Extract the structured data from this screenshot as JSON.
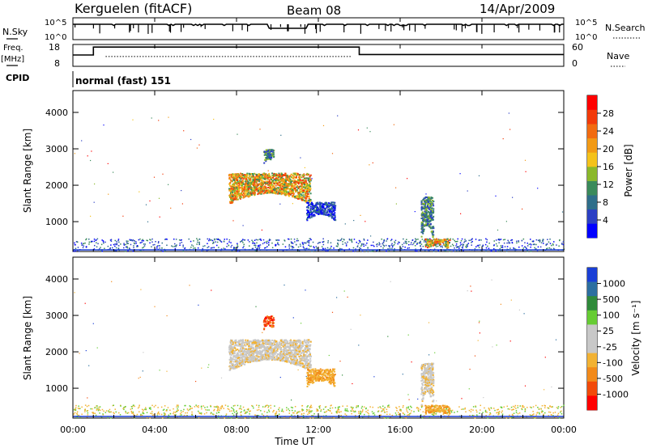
{
  "header": {
    "station": "Kerguelen (fitACF)",
    "beam": "Beam 08",
    "date": "14/Apr/2009"
  },
  "left_labels": {
    "nsky": "N.Sky",
    "freq": "Freq.",
    "freq_unit": "[MHz]",
    "cpid": "CPID"
  },
  "right_labels": {
    "nsearch": "N.Search",
    "nave": "Nave"
  },
  "cpid_text": "normal (fast) 151",
  "chart_data": [
    {
      "type": "line",
      "name": "noise-panel",
      "left_ylabel": "N.Sky",
      "right_ylabel": "N.Search",
      "left_ticks": [
        "10^5",
        "10^0"
      ],
      "right_ticks": [
        "10^5",
        "10^0"
      ],
      "xlim": [
        0,
        24
      ]
    },
    {
      "type": "line",
      "name": "frequency-panel",
      "left_ylabel": "Freq. [MHz]",
      "right_ylabel": "Nave",
      "left_ticks": [
        "18",
        "8"
      ],
      "right_ticks": [
        "60",
        "0"
      ],
      "ylim_left": [
        8,
        18
      ],
      "ylim_right": [
        0,
        60
      ],
      "freq_steps": [
        {
          "start": 0.0,
          "end": 1.0,
          "value": 13.2
        },
        {
          "start": 1.0,
          "end": 14.0,
          "value": 16.8
        },
        {
          "start": 14.0,
          "end": 24.0,
          "value": 13.4
        }
      ],
      "nave_dotted": {
        "start": 1.6,
        "end": 13.6,
        "value": 27
      }
    },
    {
      "type": "heatmap",
      "name": "power",
      "ylabel": "Slant Range [km]",
      "ylim": [
        180,
        4600
      ],
      "yticks": [
        "1000",
        "2000",
        "3000",
        "4000"
      ],
      "xlim": [
        0,
        24
      ],
      "colorbar_label": "Power [dB]",
      "colorbar_ticks": [
        "4",
        "8",
        "12",
        "16",
        "20",
        "24",
        "28"
      ],
      "colorbar_colors": [
        "#0000ff",
        "#2b3fc4",
        "#2e6e8a",
        "#3a8a5a",
        "#8ab82a",
        "#f4c21a",
        "#f29a15",
        "#f26b10",
        "#f23a0a",
        "#ff0000"
      ],
      "echo_regions": [
        {
          "t0": 7.6,
          "t1": 11.6,
          "r0": 1500,
          "r1": 2350,
          "level": "high"
        },
        {
          "t0": 9.3,
          "t1": 9.8,
          "r0": 2600,
          "r1": 3000,
          "level": "mid"
        },
        {
          "t0": 11.4,
          "t1": 12.8,
          "r0": 1050,
          "r1": 1550,
          "level": "low"
        },
        {
          "t0": 17.0,
          "t1": 17.6,
          "r0": 500,
          "r1": 1700,
          "level": "mid"
        },
        {
          "t0": 17.2,
          "t1": 18.4,
          "r0": 280,
          "r1": 550,
          "level": "high"
        }
      ]
    },
    {
      "type": "heatmap",
      "name": "velocity",
      "ylabel": "Slant Range [km]",
      "ylim": [
        180,
        4600
      ],
      "yticks": [
        "1000",
        "2000",
        "3000",
        "4000"
      ],
      "xlabel": "Time UT",
      "xlim": [
        0,
        24
      ],
      "xticks": [
        "00:00",
        "04:00",
        "08:00",
        "12:00",
        "16:00",
        "20:00",
        "00:00"
      ],
      "colorbar_label": "Velocity [m s⁻¹]",
      "colorbar_ticks": [
        "1000",
        "500",
        "100",
        "25",
        "-25",
        "-100",
        "-500",
        "-1000"
      ],
      "colorbar_colors": [
        "#1a3fd6",
        "#2c6fa0",
        "#2f8a3a",
        "#66cc33",
        "#c8c8c8",
        "#c8c8c8",
        "#f2b233",
        "#f28a1a",
        "#f24a0a",
        "#ff0000"
      ],
      "echo_regions": [
        {
          "t0": 7.6,
          "t1": 11.6,
          "r0": 1500,
          "r1": 2350,
          "level": "grey"
        },
        {
          "t0": 9.3,
          "t1": 9.8,
          "r0": 2600,
          "r1": 3000,
          "level": "red"
        },
        {
          "t0": 11.4,
          "t1": 12.8,
          "r0": 1050,
          "r1": 1550,
          "level": "orange"
        },
        {
          "t0": 17.0,
          "t1": 17.6,
          "r0": 500,
          "r1": 1700,
          "level": "grey"
        },
        {
          "t0": 17.2,
          "t1": 18.4,
          "r0": 280,
          "r1": 550,
          "level": "orange"
        }
      ]
    }
  ]
}
